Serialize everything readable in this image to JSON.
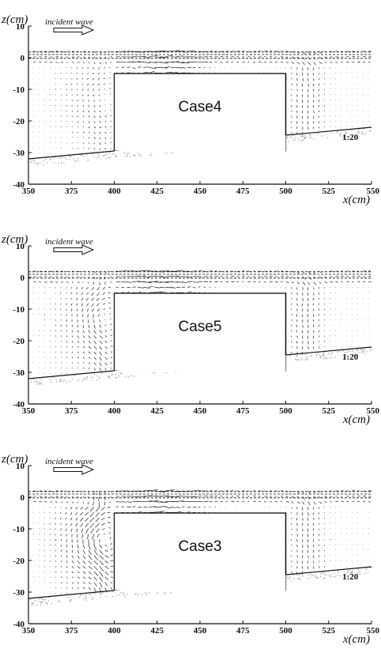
{
  "chart_data": [
    {
      "type": "vector-field",
      "case_label": "Case4",
      "xlabel": "x(cm)",
      "ylabel": "z(cm)",
      "xlim": [
        350,
        550
      ],
      "ylim": [
        -40,
        10
      ],
      "x_ticks": [
        "350",
        "375",
        "400",
        "425",
        "450",
        "475",
        "500",
        "525",
        "550"
      ],
      "y_ticks": [
        "10",
        "0",
        "-10",
        "-20",
        "-30",
        "-40"
      ],
      "annotation_wave": "incident wave",
      "annotation_slope": "1:20",
      "structure": {
        "x_start": 400,
        "x_end": 500,
        "z_top": -5
      },
      "bottom_line": {
        "x": [
          350,
          550
        ],
        "z": [
          -32,
          -22
        ]
      },
      "free_surface_z": 1,
      "vortex_intensity": 0.35
    },
    {
      "type": "vector-field",
      "case_label": "Case5",
      "xlabel": "x(cm)",
      "ylabel": "z(cm)",
      "xlim": [
        350,
        550
      ],
      "ylim": [
        -40,
        10
      ],
      "x_ticks": [
        "350",
        "375",
        "400",
        "425",
        "450",
        "475",
        "500",
        "525",
        "550"
      ],
      "y_ticks": [
        "10",
        "0",
        "-10",
        "-20",
        "-30",
        "-40"
      ],
      "annotation_wave": "incident wave",
      "annotation_slope": "1:20",
      "structure": {
        "x_start": 400,
        "x_end": 500,
        "z_top": -5
      },
      "bottom_line": {
        "x": [
          350,
          550
        ],
        "z": [
          -32,
          -22
        ]
      },
      "free_surface_z": 1,
      "vortex_intensity": 0.65
    },
    {
      "type": "vector-field",
      "case_label": "Case3",
      "xlabel": "x(cm)",
      "ylabel": "z(cm)",
      "xlim": [
        350,
        550
      ],
      "ylim": [
        -40,
        10
      ],
      "x_ticks": [
        "350",
        "375",
        "400",
        "425",
        "450",
        "475",
        "500",
        "525",
        "550"
      ],
      "y_ticks": [
        "10",
        "0",
        "-10",
        "-20",
        "-30",
        "-40"
      ],
      "annotation_wave": "incident wave",
      "annotation_slope": "1:20",
      "structure": {
        "x_start": 400,
        "x_end": 500,
        "z_top": -5
      },
      "bottom_line": {
        "x": [
          350,
          550
        ],
        "z": [
          -32,
          -22
        ]
      },
      "free_surface_z": 1,
      "vortex_intensity": 1.0
    }
  ],
  "colors": {
    "ink": "#111111",
    "seabed": "#9a9a9a",
    "vectors": "#222222"
  }
}
